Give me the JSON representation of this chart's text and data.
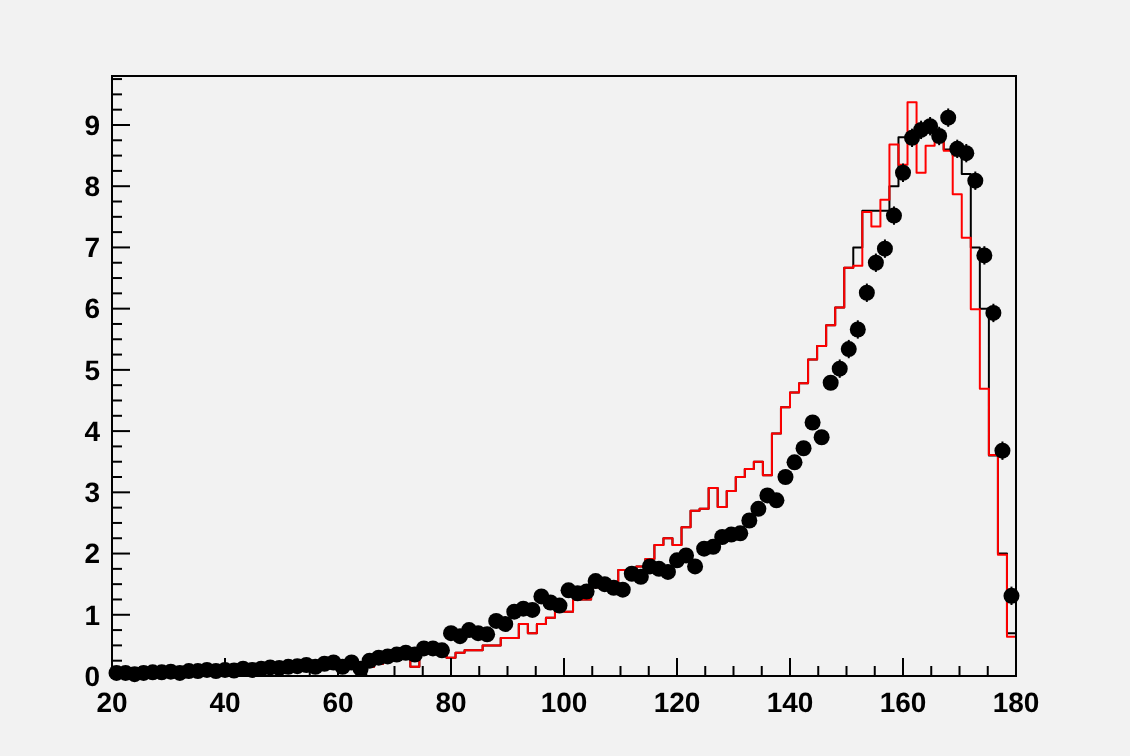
{
  "chart_data": {
    "type": "histogram",
    "xlim": [
      20,
      180
    ],
    "ylim": [
      0,
      9.8
    ],
    "xticks": [
      20,
      {
        "value": 25,
        "label": null
      },
      {
        "value": 30,
        "label": null
      },
      {
        "value": 35,
        "label": null
      },
      40,
      {
        "value": 45,
        "label": null
      },
      {
        "value": 50,
        "label": null
      },
      {
        "value": 55,
        "label": null
      },
      60,
      {
        "value": 65,
        "label": null
      },
      {
        "value": 70,
        "label": null
      },
      {
        "value": 75,
        "label": null
      },
      80,
      {
        "value": 85,
        "label": null
      },
      {
        "value": 90,
        "label": null
      },
      {
        "value": 95,
        "label": null
      },
      100,
      {
        "value": 105,
        "label": null
      },
      {
        "value": 110,
        "label": null
      },
      {
        "value": 115,
        "label": null
      },
      120,
      {
        "value": 125,
        "label": null
      },
      {
        "value": 130,
        "label": null
      },
      {
        "value": 135,
        "label": null
      },
      140,
      {
        "value": 145,
        "label": null
      },
      {
        "value": 150,
        "label": null
      },
      {
        "value": 155,
        "label": null
      },
      160,
      {
        "value": 165,
        "label": null
      },
      {
        "value": 170,
        "label": null
      },
      {
        "value": 175,
        "label": null
      },
      180
    ],
    "yticks": [
      0,
      {
        "value": 0.25,
        "label": null
      },
      {
        "value": 0.5,
        "label": null
      },
      {
        "value": 0.75,
        "label": null
      },
      1,
      {
        "value": 1.25,
        "label": null
      },
      {
        "value": 1.5,
        "label": null
      },
      {
        "value": 1.75,
        "label": null
      },
      2,
      {
        "value": 2.25,
        "label": null
      },
      {
        "value": 2.5,
        "label": null
      },
      {
        "value": 2.75,
        "label": null
      },
      3,
      {
        "value": 3.25,
        "label": null
      },
      {
        "value": 3.5,
        "label": null
      },
      {
        "value": 3.75,
        "label": null
      },
      4,
      {
        "value": 4.25,
        "label": null
      },
      {
        "value": 4.5,
        "label": null
      },
      {
        "value": 4.75,
        "label": null
      },
      5,
      {
        "value": 5.25,
        "label": null
      },
      {
        "value": 5.5,
        "label": null
      },
      {
        "value": 5.75,
        "label": null
      },
      6,
      {
        "value": 6.25,
        "label": null
      },
      {
        "value": 6.5,
        "label": null
      },
      {
        "value": 6.75,
        "label": null
      },
      7,
      {
        "value": 7.25,
        "label": null
      },
      {
        "value": 7.5,
        "label": null
      },
      {
        "value": 7.75,
        "label": null
      },
      8,
      {
        "value": 8.25,
        "label": null
      },
      {
        "value": 8.5,
        "label": null
      },
      {
        "value": 8.75,
        "label": null
      },
      9,
      {
        "value": 9.25,
        "label": null
      },
      {
        "value": 9.5,
        "label": null
      },
      {
        "value": 9.75,
        "label": null
      }
    ],
    "bins": [
      20,
      21.6,
      23.2,
      24.8,
      26.4,
      28,
      29.6,
      31.2,
      32.8,
      34.4,
      36,
      37.6,
      39.2,
      40.8,
      42.4,
      44,
      45.6,
      47.2,
      48.8,
      50.4,
      52,
      53.6,
      55.2,
      56.8,
      58.4,
      60,
      61.6,
      63.2,
      64.8,
      66.4,
      68,
      69.6,
      71.2,
      72.8,
      74.4,
      76,
      77.6,
      79.2,
      80.8,
      82.4,
      84,
      85.6,
      87.2,
      88.8,
      90.4,
      92,
      93.6,
      95.2,
      96.8,
      98.4,
      100,
      101.6,
      103.2,
      104.8,
      106.4,
      108,
      109.6,
      111.2,
      112.8,
      114.4,
      116,
      117.6,
      119.2,
      120.8,
      122.4,
      124,
      125.6,
      127.2,
      128.8,
      130.4,
      132,
      133.6,
      135.2,
      136.8,
      138.4,
      140,
      141.6,
      143.2,
      144.8,
      146.4,
      148,
      149.6,
      151.2,
      152.8,
      154.4,
      156,
      157.6,
      159.2,
      160.8,
      162.4,
      164,
      165.6,
      167.2,
      168.8,
      170.4,
      172,
      173.6,
      175.2,
      176.8,
      178.4,
      180
    ],
    "series": [
      {
        "color": "#000000",
        "values": [
          0.05,
          0.05,
          0.05,
          0.1,
          0.1,
          0.08,
          0.08,
          0.1,
          0.1,
          0.08,
          0.12,
          0.1,
          0.12,
          0.12,
          0.1,
          0.12,
          0.1,
          0.13,
          0.12,
          0.15,
          0.15,
          0.18,
          0.15,
          0.2,
          0.3,
          0.22,
          0.28,
          0.1,
          0.15,
          0.2,
          0.25,
          0.28,
          0.3,
          0.15,
          0.38,
          0.38,
          0.38,
          0.3,
          0.38,
          0.42,
          0.42,
          0.5,
          0.5,
          0.62,
          0.62,
          0.85,
          0.7,
          0.85,
          0.95,
          1.2,
          1.05,
          1.25,
          1.25,
          1.45,
          1.5,
          1.46,
          1.73,
          1.62,
          1.79,
          1.91,
          2.14,
          2.25,
          2.14,
          2.43,
          2.7,
          2.73,
          3.07,
          2.76,
          3.02,
          3.25,
          3.38,
          3.5,
          3.28,
          3.96,
          4.39,
          4.63,
          4.78,
          5.17,
          5.39,
          5.73,
          6.02,
          6.67,
          7.0,
          7.6,
          7.6,
          7.6,
          8.0,
          8.8,
          8.8,
          8.9,
          9.0,
          8.8,
          8.6,
          8.5,
          8.2,
          7.0,
          6.0,
          3.6,
          2.0,
          0.7
        ]
      },
      {
        "color": "#ff0000",
        "values": [
          0.05,
          0.05,
          0.05,
          0.1,
          0.1,
          0.08,
          0.08,
          0.1,
          0.1,
          0.08,
          0.12,
          0.1,
          0.12,
          0.12,
          0.1,
          0.12,
          0.1,
          0.13,
          0.12,
          0.15,
          0.15,
          0.18,
          0.15,
          0.2,
          0.3,
          0.22,
          0.28,
          0.1,
          0.15,
          0.2,
          0.25,
          0.28,
          0.3,
          0.15,
          0.38,
          0.38,
          0.38,
          0.3,
          0.38,
          0.42,
          0.42,
          0.5,
          0.5,
          0.62,
          0.62,
          0.85,
          0.7,
          0.85,
          0.95,
          1.2,
          1.05,
          1.25,
          1.25,
          1.45,
          1.5,
          1.46,
          1.73,
          1.62,
          1.79,
          1.91,
          2.14,
          2.25,
          2.14,
          2.43,
          2.7,
          2.73,
          3.07,
          2.76,
          3.02,
          3.25,
          3.38,
          3.5,
          3.28,
          3.96,
          4.39,
          4.63,
          4.78,
          5.17,
          5.39,
          5.73,
          6.02,
          6.67,
          6.7,
          7.58,
          7.34,
          7.78,
          8.68,
          8.35,
          9.37,
          8.22,
          8.66,
          8.82,
          8.58,
          7.87,
          7.16,
          5.99,
          4.69,
          3.61,
          1.98,
          0.64
        ]
      },
      {
        "type": "scatter",
        "color": "#000000",
        "marker": "circle",
        "x": [
          20.8,
          22.4,
          24,
          25.6,
          27.2,
          28.8,
          30.4,
          32,
          33.6,
          35.2,
          36.8,
          38.4,
          40,
          41.6,
          43.2,
          44.8,
          46.4,
          48,
          49.6,
          51.2,
          52.8,
          54.4,
          56,
          57.6,
          59.2,
          60.8,
          62.4,
          64,
          65.6,
          67.2,
          68.8,
          70.4,
          72,
          73.6,
          75.2,
          76.8,
          78.4,
          80,
          81.6,
          83.2,
          84.8,
          86.4,
          88,
          89.6,
          91.2,
          92.8,
          94.4,
          96,
          97.6,
          99.2,
          100.8,
          102.4,
          104,
          105.6,
          107.2,
          108.8,
          110.4,
          112,
          113.6,
          115.2,
          116.8,
          118.4,
          120,
          121.6,
          123.2,
          124.8,
          126.4,
          128,
          129.6,
          131.2,
          132.8,
          134.4,
          136,
          137.6,
          139.2,
          140.8,
          142.4,
          144,
          145.6,
          147.2,
          148.8,
          150.4,
          152,
          153.6,
          155.2,
          156.8,
          158.4,
          160,
          161.6,
          163.2,
          164.8,
          166.4,
          168,
          169.6,
          171.2,
          172.8,
          174.4,
          176,
          177.6,
          179.2
        ],
        "values": [
          0.05,
          0.05,
          0.03,
          0.05,
          0.06,
          0.06,
          0.07,
          0.05,
          0.08,
          0.08,
          0.1,
          0.08,
          0.1,
          0.09,
          0.12,
          0.1,
          0.12,
          0.14,
          0.13,
          0.15,
          0.16,
          0.18,
          0.15,
          0.2,
          0.22,
          0.15,
          0.22,
          0.12,
          0.25,
          0.3,
          0.32,
          0.35,
          0.38,
          0.35,
          0.45,
          0.45,
          0.42,
          0.7,
          0.65,
          0.75,
          0.7,
          0.68,
          0.9,
          0.85,
          1.05,
          1.1,
          1.08,
          1.3,
          1.2,
          1.15,
          1.4,
          1.35,
          1.38,
          1.55,
          1.5,
          1.44,
          1.41,
          1.67,
          1.62,
          1.79,
          1.75,
          1.7,
          1.89,
          1.97,
          1.79,
          2.08,
          2.11,
          2.27,
          2.31,
          2.33,
          2.54,
          2.73,
          2.95,
          2.87,
          3.25,
          3.49,
          3.72,
          4.14,
          3.9,
          4.79,
          5.02,
          5.34,
          5.66,
          6.26,
          6.75,
          6.98,
          7.52,
          8.22,
          8.79,
          8.92,
          8.98,
          8.82,
          9.12,
          8.61,
          8.54,
          8.09,
          6.87,
          5.93,
          3.68,
          1.31
        ],
        "errors": [
          0.05,
          0.05,
          0.05,
          0.05,
          0.05,
          0.05,
          0.05,
          0.05,
          0.05,
          0.05,
          0.05,
          0.05,
          0.05,
          0.05,
          0.05,
          0.05,
          0.05,
          0.05,
          0.05,
          0.05,
          0.05,
          0.05,
          0.05,
          0.05,
          0.05,
          0.05,
          0.05,
          0.05,
          0.05,
          0.05,
          0.05,
          0.05,
          0.05,
          0.05,
          0.05,
          0.05,
          0.05,
          0.05,
          0.05,
          0.05,
          0.05,
          0.05,
          0.05,
          0.05,
          0.05,
          0.05,
          0.05,
          0.05,
          0.05,
          0.05,
          0.08,
          0.08,
          0.08,
          0.08,
          0.08,
          0.08,
          0.08,
          0.08,
          0.08,
          0.08,
          0.08,
          0.08,
          0.08,
          0.08,
          0.08,
          0.08,
          0.08,
          0.08,
          0.08,
          0.08,
          0.08,
          0.08,
          0.08,
          0.08,
          0.08,
          0.08,
          0.08,
          0.08,
          0.08,
          0.08,
          0.15,
          0.15,
          0.15,
          0.15,
          0.15,
          0.15,
          0.15,
          0.15,
          0.15,
          0.15,
          0.15,
          0.15,
          0.15,
          0.15,
          0.15,
          0.15,
          0.15,
          0.15,
          0.15,
          0.15
        ]
      }
    ]
  }
}
